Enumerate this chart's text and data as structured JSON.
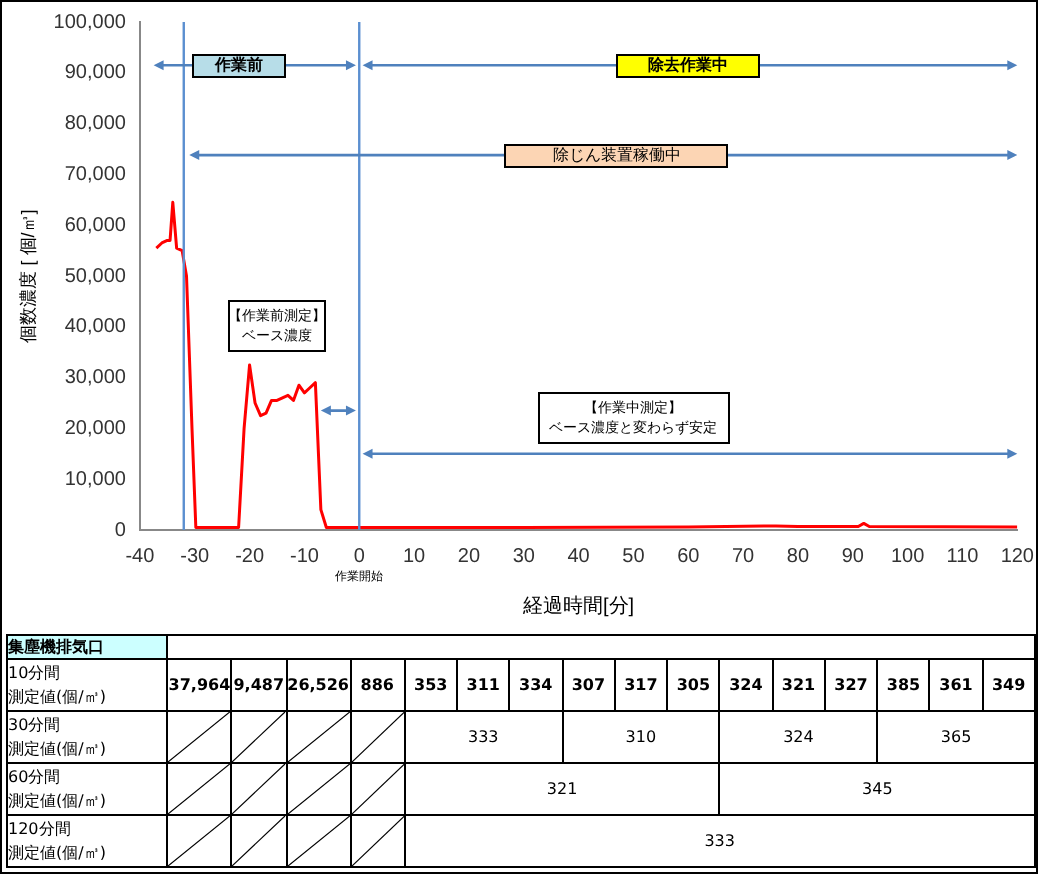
{
  "chart_data": [
    {
      "type": "line",
      "xlabel": "経過時間[分]",
      "ylabel": "個数濃度 [ 個/㎥]",
      "legend": false,
      "marker": "none",
      "grid": false,
      "xlim": [
        -40,
        120
      ],
      "xticks": [
        -40,
        -30,
        -20,
        -10,
        0,
        10,
        20,
        30,
        40,
        50,
        60,
        70,
        80,
        90,
        100,
        110,
        120
      ],
      "ylim": [
        0,
        100000
      ],
      "yticks": [
        0,
        {
          "value": 10000,
          "label": "10,000"
        },
        {
          "value": 20000,
          "label": "20,000"
        },
        {
          "value": 30000,
          "label": "30,000"
        },
        {
          "value": 40000,
          "label": "40,000"
        },
        {
          "value": 50000,
          "label": "50,000"
        },
        {
          "value": 60000,
          "label": "60,000"
        },
        {
          "value": 70000,
          "label": "70,000"
        },
        {
          "value": 80000,
          "label": "80,000"
        },
        {
          "value": 90000,
          "label": "90,000"
        },
        {
          "value": 100000,
          "label": "100,000"
        }
      ],
      "series": [
        {
          "color": "#ff0000",
          "x": [
            -37,
            -36,
            -35,
            -34.5,
            -34,
            -33.3,
            -32.3,
            -31.5,
            -30.5,
            -29.8,
            -22,
            -21,
            -20,
            -19,
            -18,
            -17,
            -16,
            -15,
            -14,
            -13,
            -12,
            -11,
            -10,
            -9,
            -8,
            -7,
            -6,
            0,
            30,
            60,
            76,
            80,
            91,
            92,
            93,
            120
          ],
          "values": [
            55500,
            56500,
            57000,
            57000,
            64500,
            55500,
            55000,
            50000,
            20000,
            500,
            500,
            20000,
            32500,
            25000,
            22500,
            23000,
            25500,
            25500,
            26000,
            26500,
            25500,
            28500,
            27000,
            28000,
            29000,
            4000,
            500,
            500,
            500,
            600,
            800,
            700,
            700,
            1300,
            700,
            600
          ]
        }
      ],
      "ref_lines": [
        {
          "axis": "x",
          "value": -32,
          "color": "#5b8fd0"
        },
        {
          "axis": "x",
          "value": 0,
          "color": "#5b8fd0"
        }
      ],
      "annotations": [
        "作業前",
        "除去作業中",
        "除じん装置稼働中",
        "【作業前測定】",
        "ベース濃度",
        "【作業中測定】",
        "ベース濃度と変わらず安定",
        "作業開始"
      ]
    },
    {
      "type": "other",
      "title": "集塵機排気口",
      "categories": [
        "10分間",
        "30分間",
        "60分間",
        "120分間"
      ],
      "annotations": [
        "測定値(個/㎥)",
        "測定値(個/㎥)",
        "測定値(個/㎥)",
        "測定値(個/㎥)"
      ],
      "cell_labels": [
        [
          "37,964",
          "9,487",
          "26,526",
          "886",
          "353",
          "311",
          "334",
          "307",
          "317",
          "305",
          "324",
          "321",
          "327",
          "385",
          "361",
          "349"
        ],
        [
          null,
          null,
          null,
          null,
          "333",
          "310",
          "324",
          "365"
        ],
        [
          null,
          null,
          null,
          null,
          "321",
          "345"
        ],
        [
          null,
          null,
          null,
          null,
          "333"
        ]
      ]
    }
  ]
}
